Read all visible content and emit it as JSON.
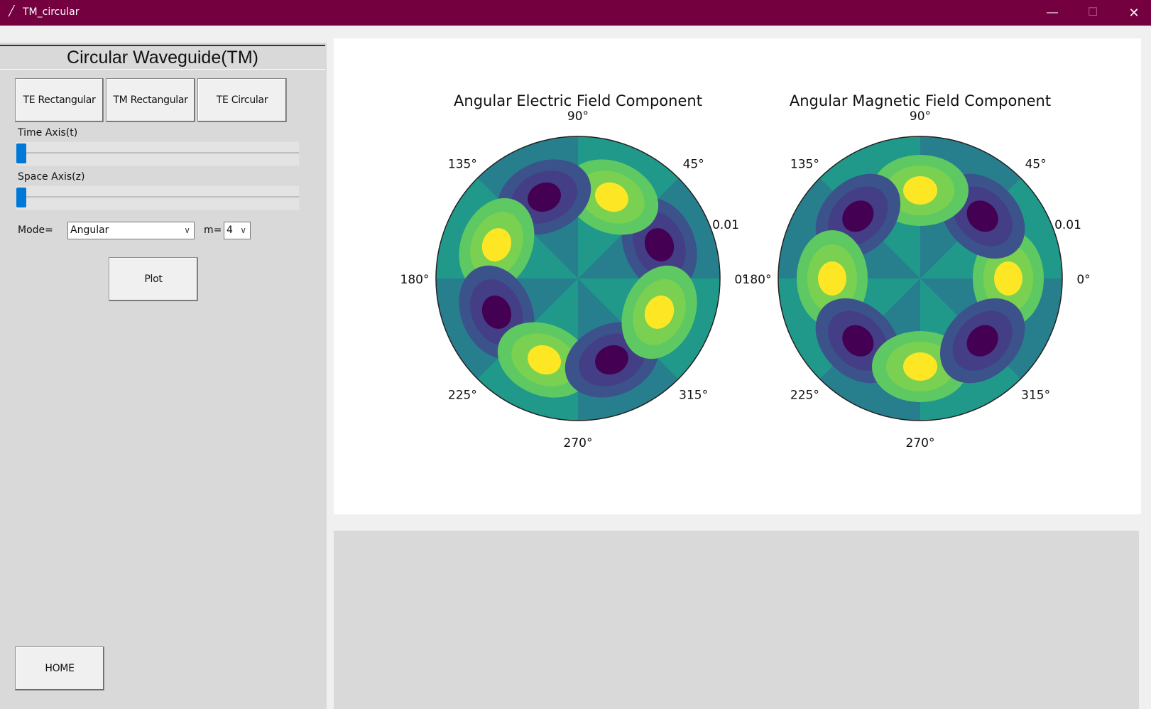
{
  "window": {
    "title": "TM_circular"
  },
  "panel": {
    "heading": "Circular Waveguide(TM)",
    "buttons": {
      "te_rect": "TE Rectangular",
      "tm_rect": "TM Rectangular",
      "te_circ": "TE Circular",
      "plot": "Plot",
      "home": "HOME"
    },
    "time_slider": {
      "label": "Time Axis(t)",
      "value": 0
    },
    "space_slider": {
      "label": "Space Axis(z)",
      "value": 0
    },
    "mode": {
      "label": "Mode=",
      "value": "Angular"
    },
    "m": {
      "label": "m=",
      "value": "4"
    }
  },
  "colors": {
    "titlebar": "#750040",
    "slider_thumb": "#0078d7"
  },
  "chart_data": [
    {
      "type": "heatmap",
      "projection": "polar",
      "title": "Angular Electric Field Component",
      "angle_tick_labels": [
        "0°",
        "45°",
        "90°",
        "135°",
        "180°",
        "225°",
        "270°",
        "315°"
      ],
      "radial_tick_labels": [
        "0.01"
      ],
      "lobe_angles_deg": [
        0,
        45,
        90,
        135,
        180,
        225,
        270,
        315
      ],
      "lobe_peak_angles_deg": [
        22.5,
        67.5,
        112.5,
        157.5,
        202.5,
        247.5,
        292.5,
        337.5
      ],
      "lobe_signs": [
        -1,
        1,
        -1,
        1,
        -1,
        1,
        -1,
        1
      ],
      "colormap": [
        "#440154",
        "#3b528b",
        "#21918c",
        "#5ec962",
        "#fde725"
      ]
    },
    {
      "type": "heatmap",
      "projection": "polar",
      "title": "Angular Magnetic Field Component",
      "angle_tick_labels": [
        "0°",
        "45°",
        "90°",
        "135°",
        "180°",
        "225°",
        "270°",
        "315°"
      ],
      "radial_tick_labels": [
        "0.01"
      ],
      "lobe_angles_deg": [
        0,
        45,
        90,
        135,
        180,
        225,
        270,
        315
      ],
      "lobe_peak_angles_deg": [
        0,
        45,
        90,
        135,
        180,
        225,
        270,
        315
      ],
      "lobe_signs": [
        1,
        -1,
        1,
        -1,
        1,
        -1,
        1,
        -1
      ],
      "colormap": [
        "#440154",
        "#3b528b",
        "#21918c",
        "#5ec962",
        "#fde725"
      ]
    }
  ]
}
